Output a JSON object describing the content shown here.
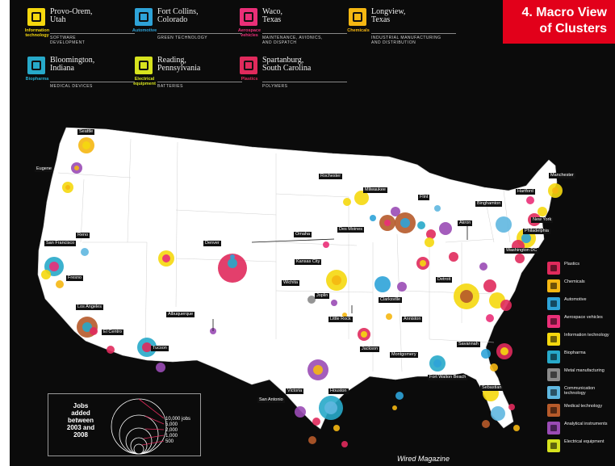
{
  "slide": {
    "title": "4. Macro View\nof Clusters",
    "credit": "Wired Magazine"
  },
  "featured": [
    {
      "city": "Provo-Orem,\nUtah",
      "industry": "SOFTWARE\nDEVELOPMENT",
      "caption": "Information\ntechnology",
      "color": "#f5d80e",
      "icon": "it-icon"
    },
    {
      "city": "Fort Collins,\nColorado",
      "industry": "GREEN TECHNOLOGY",
      "caption": "Automotive",
      "color": "#2ea3d8",
      "icon": "automotive-icon"
    },
    {
      "city": "Waco,\nTexas",
      "industry": "MAINTENANCE, AVIONICS,\nAND DISPATCH",
      "caption": "Aerospace\nvehicles",
      "color": "#ea2f78",
      "icon": "aerospace-icon"
    },
    {
      "city": "Longview,\nTexas",
      "industry": "INDUSTRIAL MANUFACTURING\nAND DISTRIBUTION",
      "caption": "Chemicals",
      "color": "#f5b712",
      "icon": "chemicals-icon"
    },
    {
      "city": "Bloomington,\nIndiana",
      "industry": "MEDICAL DEVICES",
      "caption": "Biopharma",
      "color": "#27a9c9",
      "icon": "biopharma-icon"
    },
    {
      "city": "Reading,\nPennsylvania",
      "industry": "BATTERIES",
      "caption": "Electrical\nequipment",
      "color": "#d6e21e",
      "icon": "electrical-icon"
    },
    {
      "city": "Spartanburg,\nSouth Carolina",
      "industry": "POLYMERS",
      "caption": "Plastics",
      "color": "#e02a5c",
      "icon": "plastics-icon"
    }
  ],
  "cities": [
    {
      "name": "Seattle"
    },
    {
      "name": "Eugene"
    },
    {
      "name": "Reno"
    },
    {
      "name": "San Francisco"
    },
    {
      "name": "Fresno"
    },
    {
      "name": "Los Angeles"
    },
    {
      "name": "El Centro"
    },
    {
      "name": "Tucson"
    },
    {
      "name": "Albuquerque"
    },
    {
      "name": "Denver"
    },
    {
      "name": "Omaha"
    },
    {
      "name": "Kansas City"
    },
    {
      "name": "Wichita"
    },
    {
      "name": "Joplin"
    },
    {
      "name": "Des Moines"
    },
    {
      "name": "Rochester"
    },
    {
      "name": "Milwaukee"
    },
    {
      "name": "Flint"
    },
    {
      "name": "Akron"
    },
    {
      "name": "Binghamton"
    },
    {
      "name": "Hartford"
    },
    {
      "name": "Manchester"
    },
    {
      "name": "New York"
    },
    {
      "name": "Philadelphia"
    },
    {
      "name": "Washington DC"
    },
    {
      "name": "Detroit"
    },
    {
      "name": "Clarksville"
    },
    {
      "name": "Little Rock"
    },
    {
      "name": "Anniston"
    },
    {
      "name": "Jackson"
    },
    {
      "name": "Montgomery"
    },
    {
      "name": "Savannah"
    },
    {
      "name": "Fort Walton Beach"
    },
    {
      "name": "Victoria"
    },
    {
      "name": "Houston"
    },
    {
      "name": "San Antonio"
    },
    {
      "name": "Sebastian"
    }
  ],
  "legend": [
    {
      "label": "Plastics",
      "color": "#e02a5c"
    },
    {
      "label": "Chemicals",
      "color": "#f5b712"
    },
    {
      "label": "Automotive",
      "color": "#2ea3d8"
    },
    {
      "label": "Aerospace vehicles",
      "color": "#ea2f78"
    },
    {
      "label": "Information technology",
      "color": "#f5d80e"
    },
    {
      "label": "Biopharma",
      "color": "#27a9c9"
    },
    {
      "label": "Metal manufacturing",
      "color": "#8a8a8a"
    },
    {
      "label": "Communication technology",
      "color": "#5fb7e0"
    },
    {
      "label": "Medical technology",
      "color": "#b65a2a"
    },
    {
      "label": "Analytical instruments",
      "color": "#9a4bb5"
    },
    {
      "label": "Electrical equipment",
      "color": "#d6e21e"
    }
  ],
  "jobs": {
    "title": "Jobs\nadded\nbetween\n2003 and\n2008",
    "values": [
      "10,000 jobs",
      "5,000",
      "2,000",
      "1,000",
      "500"
    ]
  }
}
